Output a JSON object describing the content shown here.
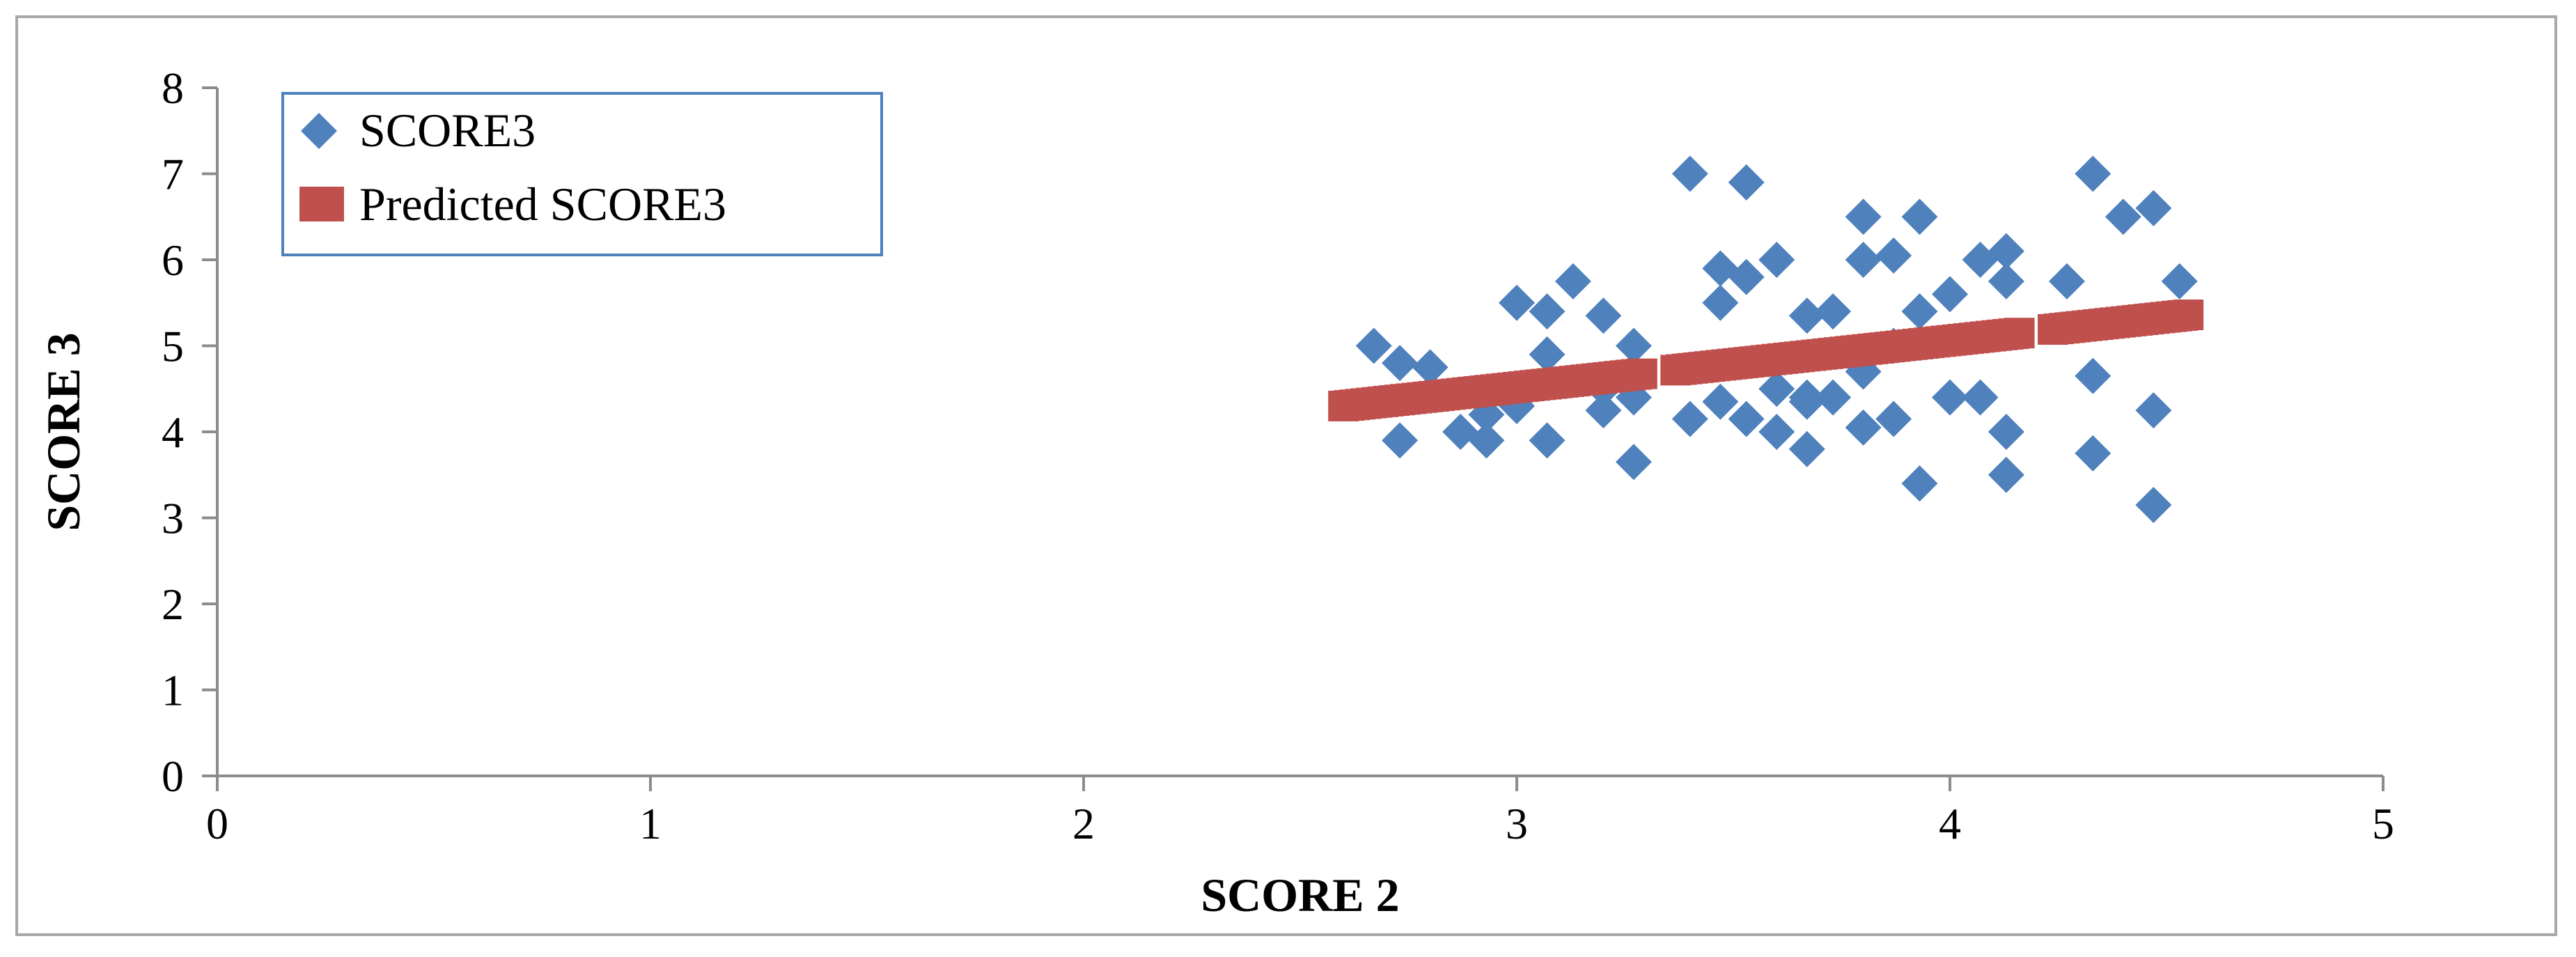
{
  "chart_data": {
    "type": "scatter",
    "xlabel": "SCORE 2",
    "ylabel": "SCORE 3",
    "xlim": [
      0,
      5
    ],
    "ylim": [
      0,
      8
    ],
    "xticks": [
      "0",
      "1",
      "2",
      "3",
      "4",
      "5"
    ],
    "yticks": [
      "0",
      "1",
      "2",
      "3",
      "4",
      "5",
      "6",
      "7",
      "8"
    ],
    "grid": false,
    "legend_position": "top-left",
    "series": [
      {
        "name": "SCORE3",
        "marker": "diamond",
        "color": "#4f81bd",
        "x": [
          2.67,
          2.73,
          2.8,
          2.87,
          2.93,
          3.0,
          3.07,
          3.13,
          3.2,
          3.27,
          2.73,
          2.93,
          3.0,
          3.07,
          3.2,
          3.27,
          2.93,
          3.07,
          3.2,
          3.27,
          3.4,
          3.47,
          3.53,
          3.6,
          3.67,
          3.73,
          3.8,
          3.87,
          3.93,
          3.4,
          3.47,
          3.53,
          3.6,
          3.67,
          3.73,
          3.8,
          3.87,
          3.93,
          3.47,
          3.53,
          3.6,
          3.67,
          3.8,
          3.87,
          3.93,
          4.0,
          4.07,
          4.13,
          4.0,
          4.07,
          4.13,
          4.27,
          4.33,
          4.4,
          4.47,
          4.53,
          4.33,
          4.47,
          4.33,
          4.47,
          4.13,
          3.67,
          3.8,
          4.13
        ],
        "y": [
          5.0,
          4.8,
          4.75,
          4.0,
          3.9,
          5.5,
          5.4,
          5.75,
          5.35,
          5.0,
          3.9,
          4.2,
          4.3,
          4.9,
          4.25,
          3.65,
          4.4,
          3.9,
          4.5,
          4.4,
          7.0,
          5.9,
          6.9,
          6.0,
          5.35,
          5.4,
          6.5,
          6.05,
          6.5,
          4.15,
          5.5,
          5.8,
          4.5,
          4.4,
          4.4,
          6.0,
          5.0,
          5.4,
          4.35,
          4.15,
          4.0,
          3.8,
          4.05,
          4.15,
          3.4,
          5.6,
          6.0,
          6.1,
          4.4,
          4.4,
          5.75,
          5.75,
          7.0,
          6.5,
          6.6,
          5.75,
          4.65,
          4.25,
          3.75,
          3.15,
          3.5,
          4.35,
          4.7,
          4.0
        ]
      },
      {
        "name": "Predicted SCORE3",
        "marker": "square",
        "color": "#c0504d",
        "x": [
          2.6,
          4.55
        ],
        "y": [
          4.3,
          5.36
        ]
      }
    ]
  }
}
